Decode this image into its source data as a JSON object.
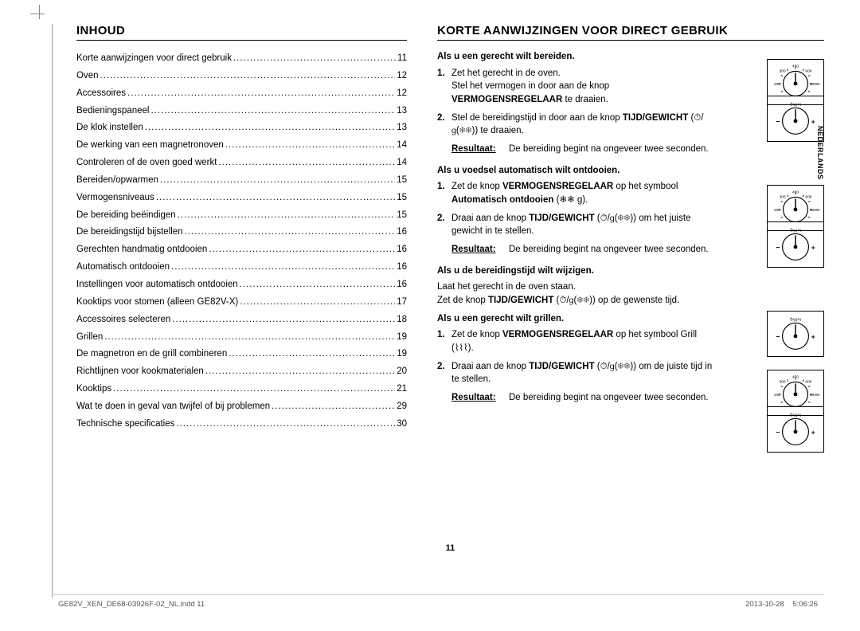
{
  "sideTab": "NEDERLANDS",
  "pageNumber": "11",
  "footer": {
    "left": "GE82V_XEN_DE68-03926F-02_NL.indd   11",
    "right": "2013-10-28     5:06:26"
  },
  "left": {
    "title": "INHOUD",
    "toc": [
      {
        "label": "Korte aanwijzingen voor direct gebruik",
        "page": "11"
      },
      {
        "label": "Oven",
        "page": "12"
      },
      {
        "label": "Accessoires",
        "page": "12"
      },
      {
        "label": "Bedieningspaneel",
        "page": "13"
      },
      {
        "label": "De klok instellen",
        "page": "13"
      },
      {
        "label": "De werking van een magnetronoven",
        "page": "14"
      },
      {
        "label": "Controleren of de oven goed werkt",
        "page": "14"
      },
      {
        "label": "Bereiden/opwarmen",
        "page": "15"
      },
      {
        "label": "Vermogensniveaus",
        "page": "15"
      },
      {
        "label": "De bereiding beëindigen",
        "page": "15"
      },
      {
        "label": "De bereidingstijd bijstellen",
        "page": "16"
      },
      {
        "label": "Gerechten handmatig ontdooien",
        "page": "16"
      },
      {
        "label": "Automatisch ontdooien",
        "page": "16"
      },
      {
        "label": "Instellingen voor automatisch ontdooien",
        "page": "16"
      },
      {
        "label": "Kooktips voor stomen (alleen GE82V-X)",
        "page": "17"
      },
      {
        "label": "Accessoires selecteren",
        "page": "18"
      },
      {
        "label": "Grillen",
        "page": "19"
      },
      {
        "label": "De magnetron en de grill combineren",
        "page": "19"
      },
      {
        "label": "Richtlijnen voor kookmaterialen",
        "page": "20"
      },
      {
        "label": "Kooktips",
        "page": "21"
      },
      {
        "label": "Wat te doen in geval van twijfel of bij problemen",
        "page": "29"
      },
      {
        "label": "Technische specificaties",
        "page": "30"
      }
    ]
  },
  "right": {
    "title": "KORTE AANWIJZINGEN VOOR DIRECT GEBRUIK",
    "sections": [
      {
        "heading": "Als u een gerecht wilt bereiden.",
        "steps": [
          {
            "n": "1.",
            "html": "Zet het gerecht in de oven.<br>Stel het vermogen in door aan de knop <b>VERMOGENSREGELAAR</b> te draaien.",
            "dial": "power"
          },
          {
            "n": "2.",
            "html": "Stel de bereidingstijd in door aan de knop <b>TIJD/GEWICHT</b> (⏱/𝗀(❄❄)) te draaien.",
            "dial": "time"
          }
        ],
        "result": {
          "label": "Resultaat:",
          "text": "De bereiding begint na ongeveer twee seconden."
        }
      },
      {
        "heading": "Als u voedsel automatisch wilt ontdooien.",
        "steps": [
          {
            "n": "1.",
            "html": "Zet de knop <b>VERMOGENSREGELAAR</b> op het symbool <b>Automatisch ontdooien</b> (❄❄ g).",
            "dial": "power"
          },
          {
            "n": "2.",
            "html": "Draai aan de knop <b>TIJD/GEWICHT</b> (⏱/𝗀(❄❄)) om het juiste gewicht in te stellen.",
            "dial": "time"
          }
        ],
        "result": {
          "label": "Resultaat:",
          "text": "De bereiding begint na ongeveer twee seconden."
        }
      },
      {
        "heading": "Als u de bereidingstijd wilt wijzigen.",
        "plain": "Laat het gerecht in de oven staan.<br>Zet de knop <b>TIJD/GEWICHT</b> (⏱/𝗀(❄❄)) op de gewenste tijd.",
        "plainDial": "time"
      },
      {
        "heading": "Als u een gerecht wilt grillen.",
        "steps": [
          {
            "n": "1.",
            "html": "Zet de knop <b>VERMOGENSREGELAAR</b> op het symbool Grill (⌇⌇⌇).",
            "dial": "power"
          },
          {
            "n": "2.",
            "html": "Draai aan de knop <b>TIJD/GEWICHT</b> (⏱/𝗀(❄❄)) om de juiste tijd in te stellen.",
            "dial": "time"
          }
        ],
        "result": {
          "label": "Resultaat:",
          "text": "De bereiding begint na ongeveer twee seconden."
        }
      }
    ]
  },
  "dialSvg": {
    "power": "P",
    "time": "T"
  }
}
